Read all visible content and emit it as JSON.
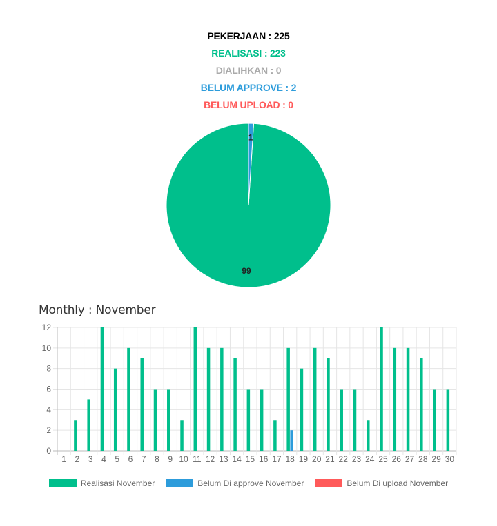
{
  "summary": {
    "pekerjaan": "PEKERJAAN : 225",
    "realisasi": "REALISASI : 223",
    "dialihkan": "DIALIHKAN : 0",
    "belum_approve": "BELUM APPROVE : 2",
    "belum_upload": "BELUM UPLOAD : 0"
  },
  "colors": {
    "black": "#000000",
    "green": "#00bf8c",
    "gray": "#aaaaaa",
    "blue": "#2d9cdb",
    "red": "#ff5a5a"
  },
  "monthly_title": "Monthly : November",
  "chart_data": [
    {
      "type": "pie",
      "slices": [
        {
          "name": "Realisasi",
          "value": 99,
          "label": "99",
          "color": "#00bf8c"
        },
        {
          "name": "Belum Approve",
          "value": 1,
          "label": "1",
          "color": "#2d9cdb"
        }
      ]
    },
    {
      "type": "bar",
      "categories": [
        "1",
        "2",
        "3",
        "4",
        "5",
        "6",
        "7",
        "8",
        "9",
        "10",
        "11",
        "12",
        "13",
        "14",
        "15",
        "16",
        "17",
        "18",
        "19",
        "20",
        "21",
        "22",
        "23",
        "24",
        "25",
        "26",
        "27",
        "28",
        "29",
        "30"
      ],
      "series": [
        {
          "name": "Realisasi November",
          "color": "#00bf8c",
          "values": [
            0,
            3,
            5,
            12,
            8,
            10,
            9,
            6,
            6,
            3,
            12,
            10,
            10,
            9,
            6,
            6,
            3,
            10,
            8,
            10,
            9,
            6,
            6,
            3,
            12,
            10,
            10,
            9,
            6,
            6
          ]
        },
        {
          "name": "Belum Di approve November",
          "color": "#2d9cdb",
          "values": [
            0,
            0,
            0,
            0,
            0,
            0,
            0,
            0,
            0,
            0,
            0,
            0,
            0,
            0,
            0,
            0,
            0,
            2,
            0,
            0,
            0,
            0,
            0,
            0,
            0,
            0,
            0,
            0,
            0,
            0
          ]
        },
        {
          "name": "Belum Di upload November",
          "color": "#ff5a5a",
          "values": [
            0,
            0,
            0,
            0,
            0,
            0,
            0,
            0,
            0,
            0,
            0,
            0,
            0,
            0,
            0,
            0,
            0,
            0,
            0,
            0,
            0,
            0,
            0,
            0,
            0,
            0,
            0,
            0,
            0,
            0
          ]
        }
      ],
      "ylim": [
        0,
        12
      ],
      "yticks": [
        0,
        2,
        4,
        6,
        8,
        10,
        12
      ],
      "grid": true,
      "legend": "bottom"
    }
  ]
}
